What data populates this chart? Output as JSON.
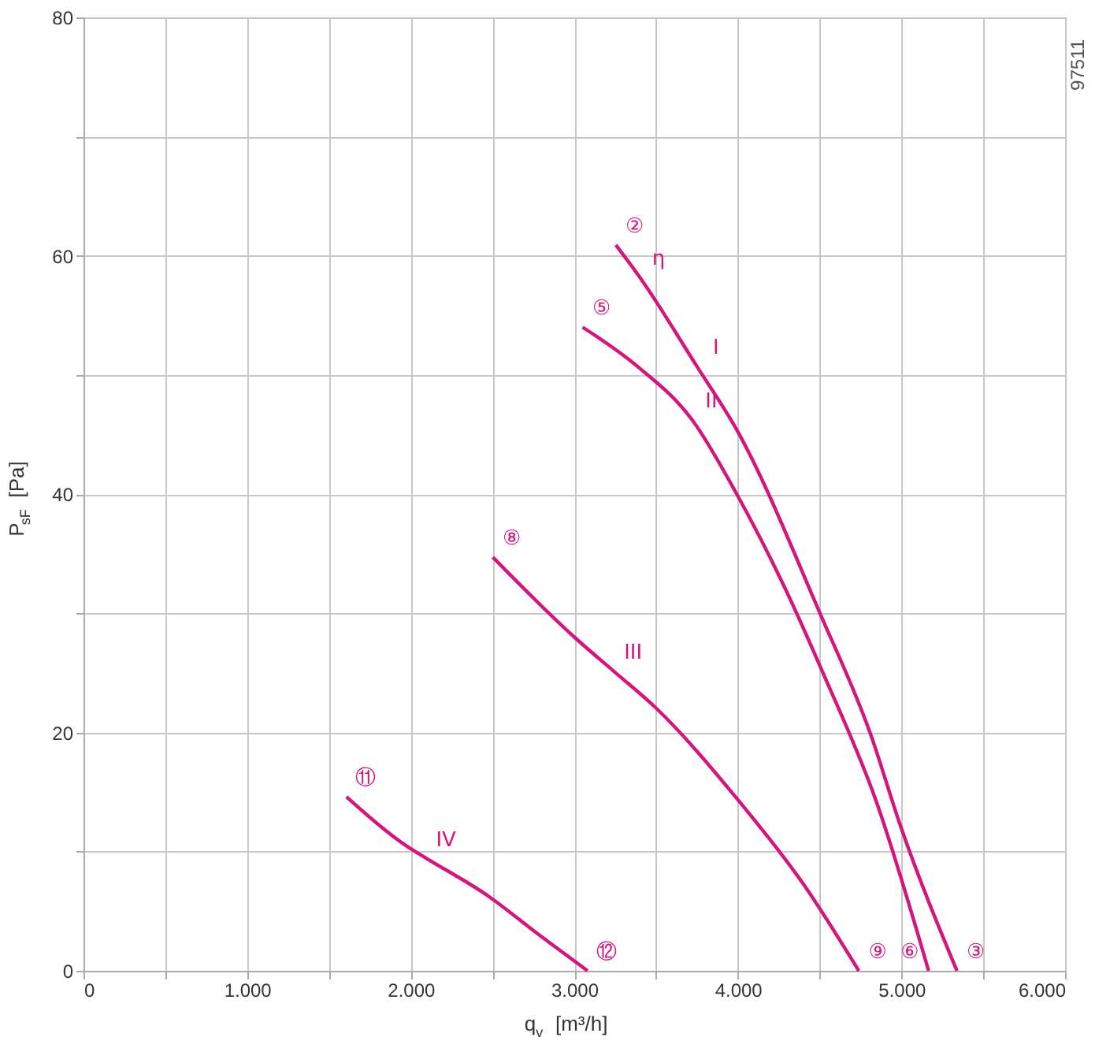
{
  "chart_data": {
    "type": "line",
    "xlabel": "q$_{v}$ [m³/h]",
    "ylabel": "P$_{sF}$ [Pa]",
    "xlim": [
      0,
      6000
    ],
    "ylim": [
      0,
      80
    ],
    "xticks": [
      0,
      {
        "value": 500,
        "label": null
      },
      {
        "value": 1000,
        "label": "1.000"
      },
      {
        "value": 1500,
        "label": null
      },
      {
        "value": 2000,
        "label": "2.000"
      },
      {
        "value": 2500,
        "label": null
      },
      {
        "value": 3000,
        "label": "3.000"
      },
      {
        "value": 3500,
        "label": null
      },
      {
        "value": 4000,
        "label": "4.000"
      },
      {
        "value": 4500,
        "label": null
      },
      {
        "value": 5000,
        "label": "5.000"
      },
      {
        "value": 5500,
        "label": null
      },
      {
        "value": 6000,
        "label": "6.000"
      }
    ],
    "yticks": [
      0,
      {
        "value": 10,
        "label": null
      },
      20,
      {
        "value": 30,
        "label": null
      },
      40,
      {
        "value": 50,
        "label": null
      },
      60,
      {
        "value": 70,
        "label": null
      },
      80
    ],
    "grid": true,
    "marker": "none",
    "line_style": "solid",
    "series": [
      {
        "color": "#d4147f",
        "x": [
          3254,
          3400,
          3750,
          3997,
          4505,
          4810,
          4993,
          5339
        ],
        "values": [
          60.9,
          58.2,
          50.7,
          45.3,
          29.9,
          19.9,
          12.2,
          0
        ]
      },
      {
        "color": "#d4147f",
        "x": [
          3051,
          3387,
          3722,
          3997,
          4271,
          4536,
          4841,
          5166
        ],
        "values": [
          54.0,
          50.7,
          46.2,
          39.9,
          32.6,
          24.5,
          14.4,
          0
        ]
      },
      {
        "color": "#d4147f",
        "x": [
          2502,
          3000,
          3244,
          3488,
          3997,
          4404,
          4739
        ],
        "values": [
          34.7,
          28.0,
          25.1,
          22.2,
          14.4,
          7.2,
          0
        ]
      },
      {
        "color": "#d4147f",
        "x": [
          1607,
          1993,
          2100,
          2471,
          2776,
          3081
        ],
        "values": [
          14.6,
          10.3,
          9.4,
          6.3,
          3.1,
          0
        ]
      }
    ],
    "annotations": [
      {
        "text": "②",
        "x": 3254,
        "y": 60.9
      },
      {
        "text": "η",
        "x": 3400,
        "y": 58.2
      },
      {
        "text": "I",
        "x": 3750,
        "y": 50.7
      },
      {
        "text": "⑤",
        "x": 3051,
        "y": 54.0
      },
      {
        "text": "II",
        "x": 3722,
        "y": 46.2
      },
      {
        "text": "⑧",
        "x": 2502,
        "y": 34.7
      },
      {
        "text": "III",
        "x": 3244,
        "y": 25.1
      },
      {
        "text": "⑪",
        "x": 1607,
        "y": 14.6
      },
      {
        "text": "IV",
        "x": 2100,
        "y": 9.4
      },
      {
        "text": "⑫",
        "x": 3081,
        "y": 0
      },
      {
        "text": "⑨",
        "x": 4739,
        "y": 0
      },
      {
        "text": "⑥",
        "x": 5166,
        "y": 0
      },
      {
        "text": "③",
        "x": 5339,
        "y": 0
      },
      "97511"
    ]
  }
}
